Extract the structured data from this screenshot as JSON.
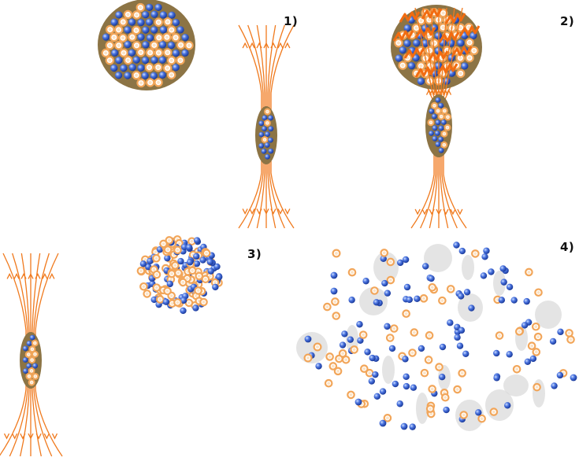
{
  "panels": [
    {
      "label": "1)"
    },
    {
      "label": "2)"
    },
    {
      "label": "3)"
    },
    {
      "label": "4)"
    }
  ],
  "colors": {
    "background": "#ffffff",
    "nucleus_shell": "#8c7445",
    "proton": "#f2a65a",
    "proton_highlight": "#fff3e0",
    "neutron": "#2f55c8",
    "neutron_highlight": "#cfe0ff",
    "field_line": "#f07a1e",
    "fragment_halo": "#d9d9d9"
  },
  "icons": {
    "proton": "orange-sphere",
    "neutron": "blue-sphere",
    "field_line": "arrowed-line"
  }
}
